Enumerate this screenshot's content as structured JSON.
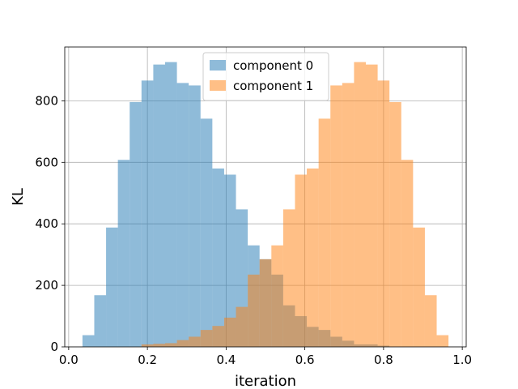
{
  "chart_data": {
    "type": "bar",
    "subtype": "histogram",
    "title": "",
    "xlabel": "iteration",
    "ylabel": "KL",
    "xlim": [
      -0.01,
      1.01
    ],
    "ylim": [
      0,
      975
    ],
    "xticks": [
      "0.0",
      "0.2",
      "0.4",
      "0.6",
      "0.8",
      "1.0"
    ],
    "xtick_values": [
      0.0,
      0.2,
      0.4,
      0.6,
      0.8,
      1.0
    ],
    "yticks": [
      "0",
      "200",
      "400",
      "600",
      "800"
    ],
    "ytick_values": [
      0,
      200,
      400,
      600,
      800
    ],
    "grid": true,
    "legend_position": "upper center",
    "bin_width": 0.03,
    "series": [
      {
        "name": "component 0",
        "color": "#1f77b4",
        "opacity": 0.5,
        "bin_start": [
          0.035,
          0.065,
          0.095,
          0.125,
          0.155,
          0.185,
          0.215,
          0.245,
          0.275,
          0.305,
          0.335,
          0.365,
          0.395,
          0.425,
          0.455,
          0.485,
          0.515,
          0.545,
          0.575,
          0.605,
          0.635,
          0.665,
          0.695,
          0.725,
          0.755,
          0.785
        ],
        "values": [
          38,
          168,
          388,
          608,
          796,
          866,
          918,
          926,
          858,
          850,
          742,
          580,
          560,
          447,
          330,
          285,
          235,
          135,
          100,
          65,
          55,
          33,
          20,
          8,
          8,
          4
        ]
      },
      {
        "name": "component 1",
        "color": "#ff7f0e",
        "opacity": 0.5,
        "bin_start": [
          0.185,
          0.215,
          0.245,
          0.275,
          0.305,
          0.335,
          0.365,
          0.395,
          0.425,
          0.455,
          0.485,
          0.515,
          0.545,
          0.575,
          0.605,
          0.635,
          0.665,
          0.695,
          0.725,
          0.755,
          0.785,
          0.815,
          0.845,
          0.875,
          0.905,
          0.935
        ],
        "values": [
          8,
          10,
          12,
          22,
          33,
          55,
          68,
          95,
          130,
          235,
          285,
          330,
          447,
          560,
          580,
          742,
          850,
          858,
          926,
          918,
          866,
          796,
          608,
          388,
          168,
          38
        ]
      }
    ]
  }
}
